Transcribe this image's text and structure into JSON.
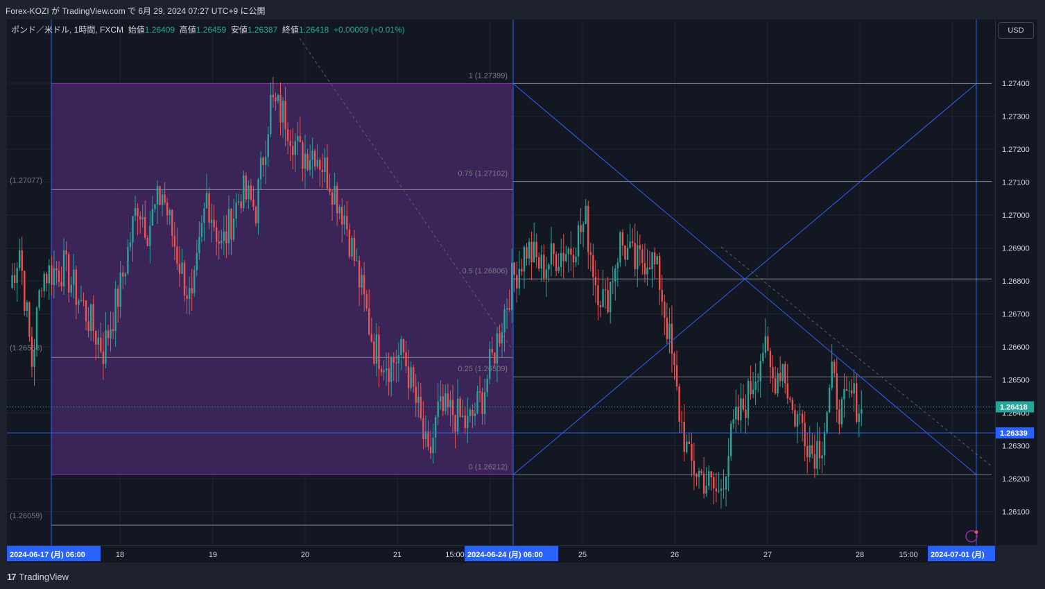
{
  "header": {
    "published_text": "Forex-KOZI が TradingView.com で 6月 29, 2024 07:27 UTC+9 に公開"
  },
  "legend": {
    "symbol": "ポンド／米ドル, 1時間, FXCM",
    "open_label": "始値",
    "open": "1.26409",
    "high_label": "高値",
    "high": "1.26459",
    "low_label": "安値",
    "low": "1.26387",
    "close_label": "終値",
    "close": "1.26418",
    "change": "+0.00009 (+0.01%)"
  },
  "currency_button": "USD",
  "footer": {
    "brand": "TradingView"
  },
  "colors": {
    "up": "#26a69a",
    "down": "#ef5350",
    "box_fill": "#4a2a6a",
    "box_border": "#9c27b0",
    "blue_line": "#2962ff",
    "fib_line": "#787b86",
    "badge_blue": "#2962ff"
  },
  "chart_data": {
    "type": "candlestick",
    "symbol": "GBP/USD",
    "timeframe": "1時間",
    "ylim": [
      1.26,
      1.2752
    ],
    "y_ticks": [
      "1.27400",
      "1.27300",
      "1.27200",
      "1.27100",
      "1.27000",
      "1.26900",
      "1.26800",
      "1.26700",
      "1.26600",
      "1.26500",
      "1.26400",
      "1.26300",
      "1.26200",
      "1.26100"
    ],
    "x_tick_labels": [
      {
        "text": "2024-06-17 (月)   06:00",
        "highlight": true
      },
      {
        "text": "18"
      },
      {
        "text": "19"
      },
      {
        "text": "20"
      },
      {
        "text": "21"
      },
      {
        "text": "15:00"
      },
      {
        "text": "2024-06-24 (月)   06:00",
        "highlight": true
      },
      {
        "text": "25"
      },
      {
        "text": "26"
      },
      {
        "text": "27"
      },
      {
        "text": "28"
      },
      {
        "text": "15:00"
      },
      {
        "text": "2024-07-01 (月)",
        "highlight": true
      }
    ],
    "current_price": "1.26418",
    "horizontal_line_price": "1.26339",
    "left_levels": [
      "(1.27077)",
      "(1.26568)",
      "(1.26059)"
    ],
    "fib_levels": [
      {
        "label": "1 (1.27399)",
        "price": 1.27399
      },
      {
        "label": "0.75 (1.27102)",
        "price": 1.27102
      },
      {
        "label": "0.5 (1.26806)",
        "price": 1.26806
      },
      {
        "label": "0.25 (1.26509)",
        "price": 1.26509
      },
      {
        "label": "0 (1.26212)",
        "price": 1.26212
      }
    ],
    "range_box": {
      "top": 1.27399,
      "bottom": 1.26212,
      "left_box_levels": [
        1.27077,
        1.26568,
        1.26059
      ]
    },
    "segments": [
      {
        "x": 0,
        "p": 1.2678
      },
      {
        "x": 4,
        "p": 1.269
      },
      {
        "x": 9,
        "p": 1.2655
      },
      {
        "x": 13,
        "p": 1.2682
      },
      {
        "x": 22,
        "p": 1.2684
      },
      {
        "x": 30,
        "p": 1.2672
      },
      {
        "x": 38,
        "p": 1.2659
      },
      {
        "x": 45,
        "p": 1.2678
      },
      {
        "x": 52,
        "p": 1.2704
      },
      {
        "x": 56,
        "p": 1.2696
      },
      {
        "x": 62,
        "p": 1.2707
      },
      {
        "x": 68,
        "p": 1.2688
      },
      {
        "x": 74,
        "p": 1.2672
      },
      {
        "x": 80,
        "p": 1.2706
      },
      {
        "x": 86,
        "p": 1.269
      },
      {
        "x": 94,
        "p": 1.2707
      },
      {
        "x": 100,
        "p": 1.2702
      },
      {
        "x": 106,
        "p": 1.2734
      },
      {
        "x": 112,
        "p": 1.273
      },
      {
        "x": 118,
        "p": 1.2718
      },
      {
        "x": 124,
        "p": 1.272
      },
      {
        "x": 130,
        "p": 1.2711
      },
      {
        "x": 136,
        "p": 1.27
      },
      {
        "x": 142,
        "p": 1.268
      },
      {
        "x": 148,
        "p": 1.266
      },
      {
        "x": 154,
        "p": 1.2655
      },
      {
        "x": 160,
        "p": 1.2658
      },
      {
        "x": 166,
        "p": 1.264
      },
      {
        "x": 170,
        "p": 1.2625
      },
      {
        "x": 174,
        "p": 1.264
      },
      {
        "x": 180,
        "p": 1.264
      },
      {
        "x": 186,
        "p": 1.2636
      },
      {
        "x": 192,
        "p": 1.2645
      },
      {
        "x": 198,
        "p": 1.2662
      },
      {
        "x": 204,
        "p": 1.268
      },
      {
        "x": 210,
        "p": 1.269
      },
      {
        "x": 216,
        "p": 1.2684
      },
      {
        "x": 222,
        "p": 1.2688
      },
      {
        "x": 228,
        "p": 1.269
      },
      {
        "x": 234,
        "p": 1.2698
      },
      {
        "x": 238,
        "p": 1.268
      },
      {
        "x": 242,
        "p": 1.2673
      },
      {
        "x": 248,
        "p": 1.2692
      },
      {
        "x": 254,
        "p": 1.2685
      },
      {
        "x": 260,
        "p": 1.2688
      },
      {
        "x": 264,
        "p": 1.268
      },
      {
        "x": 268,
        "p": 1.2662
      },
      {
        "x": 272,
        "p": 1.264
      },
      {
        "x": 276,
        "p": 1.2625
      },
      {
        "x": 282,
        "p": 1.262
      },
      {
        "x": 288,
        "p": 1.2615
      },
      {
        "x": 294,
        "p": 1.2635
      },
      {
        "x": 300,
        "p": 1.2645
      },
      {
        "x": 306,
        "p": 1.266
      },
      {
        "x": 310,
        "p": 1.265
      },
      {
        "x": 314,
        "p": 1.2655
      },
      {
        "x": 318,
        "p": 1.264
      },
      {
        "x": 322,
        "p": 1.2637
      },
      {
        "x": 326,
        "p": 1.2628
      },
      {
        "x": 330,
        "p": 1.2632
      },
      {
        "x": 334,
        "p": 1.265
      },
      {
        "x": 338,
        "p": 1.264
      },
      {
        "x": 342,
        "p": 1.2645
      },
      {
        "x": 346,
        "p": 1.2641
      }
    ]
  }
}
